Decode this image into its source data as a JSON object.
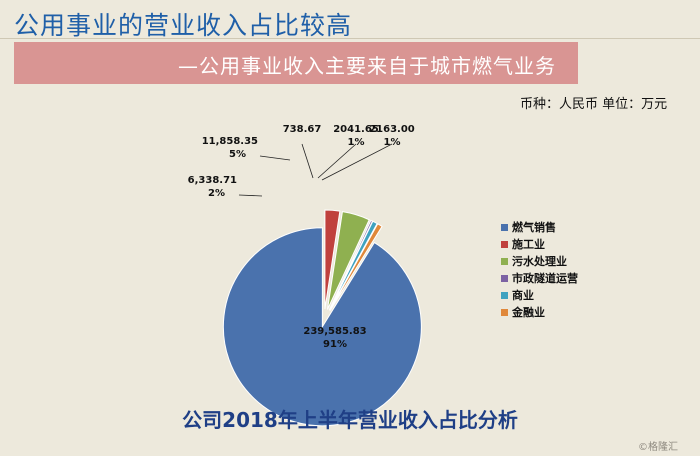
{
  "header": {
    "title": "公用事业的营业收入占比较高",
    "subtitle": "—公用事业收入主要来自于城市燃气业务"
  },
  "currency_note": "币种：人民币   单位：万元",
  "chart_data": {
    "type": "pie",
    "title": "公司2018年上半年营业收入占比分析",
    "legend_position": "right",
    "slices": [
      {
        "name": "燃气销售",
        "value": 239585.83,
        "value_label": "239,585.83",
        "pct_label": "91%",
        "color": "#4a72ad"
      },
      {
        "name": "施工业",
        "value": 6338.71,
        "value_label": "6,338.71",
        "pct_label": "2%",
        "color": "#c0413d"
      },
      {
        "name": "污水处理业",
        "value": 11858.35,
        "value_label": "11,858.35",
        "pct_label": "5%",
        "color": "#8fb050"
      },
      {
        "name": "市政隧道运营",
        "value": 738.67,
        "value_label": "738.67",
        "pct_label": "",
        "color": "#7c62a3"
      },
      {
        "name": "商业",
        "value": 2041.65,
        "value_label": "2041.65",
        "pct_label": "1%",
        "color": "#3fa2c0"
      },
      {
        "name": "金融业",
        "value": 2163.0,
        "value_label": "2163.00",
        "pct_label": "1%",
        "color": "#e0883a"
      }
    ]
  },
  "watermark": "©格隆汇"
}
